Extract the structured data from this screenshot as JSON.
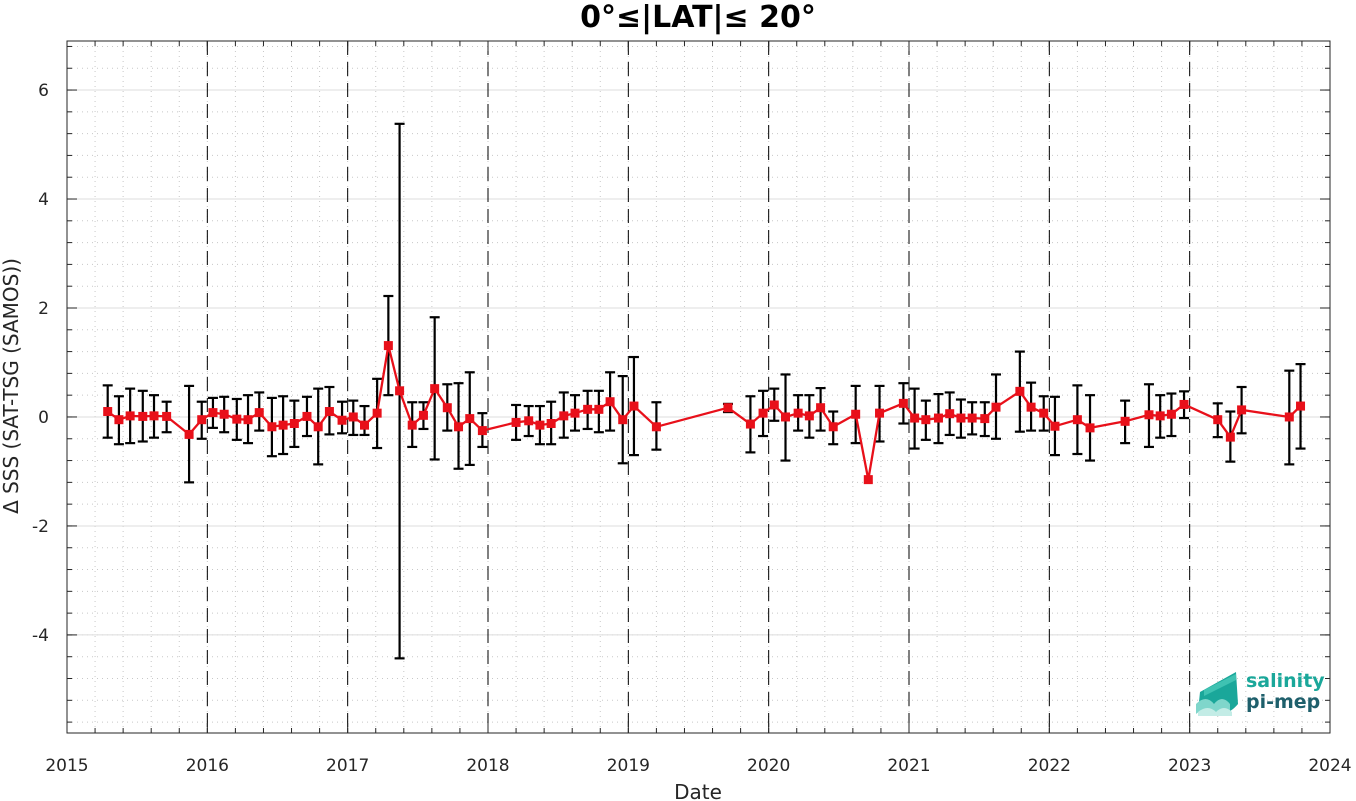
{
  "chart_data": {
    "type": "line",
    "title": "0°≤|LAT|≤ 20°",
    "xlabel": "Date",
    "ylabel": "Δ SSS (SAT-TSG (SAMOS))",
    "xlim": [
      2015.0,
      2024.0
    ],
    "ylim": [
      -5.8,
      6.9
    ],
    "x_ticks": [
      2015,
      2016,
      2017,
      2018,
      2019,
      2020,
      2021,
      2022,
      2023,
      2024
    ],
    "y_ticks": [
      -4,
      -2,
      0,
      2,
      4,
      6
    ],
    "grid": "dotted",
    "year_boundaries": [
      2016,
      2017,
      2018,
      2019,
      2020,
      2021,
      2022,
      2023
    ],
    "colors": {
      "series": "#e8101a",
      "errorbar": "#000000",
      "logo_accent": "#1aa79a"
    },
    "series": [
      {
        "x": [
          2015.29,
          2015.37,
          2015.45,
          2015.54,
          2015.62,
          2015.71,
          2015.87,
          2015.96,
          2016.04,
          2016.12,
          2016.21,
          2016.29,
          2016.37,
          2016.46,
          2016.54,
          2016.62,
          2016.71,
          2016.79,
          2016.87,
          2016.96,
          2017.04,
          2017.12,
          2017.21,
          2017.29,
          2017.37,
          2017.46,
          2017.54,
          2017.62,
          2017.71,
          2017.79,
          2017.87,
          2017.96,
          2018.2,
          2018.29,
          2018.37,
          2018.45,
          2018.54,
          2018.62,
          2018.71,
          2018.79,
          2018.87,
          2018.96,
          2019.04,
          2019.2,
          2019.71,
          2019.87,
          2019.96,
          2020.04,
          2020.12,
          2020.21,
          2020.29,
          2020.37,
          2020.46,
          2020.62,
          2020.71,
          2020.79,
          2020.96,
          2021.04,
          2021.12,
          2021.21,
          2021.29,
          2021.37,
          2021.45,
          2021.54,
          2021.62,
          2021.79,
          2021.87,
          2021.96,
          2022.04,
          2022.2,
          2022.29,
          2022.54,
          2022.71,
          2022.79,
          2022.87,
          2022.96,
          2023.2,
          2023.29,
          2023.37,
          2023.71,
          2023.79
        ],
        "y": [
          0.1,
          -0.05,
          0.02,
          0.01,
          0.02,
          0.01,
          -0.32,
          -0.05,
          0.08,
          0.05,
          -0.04,
          -0.05,
          0.08,
          -0.18,
          -0.15,
          -0.12,
          0.01,
          -0.18,
          0.1,
          -0.06,
          0.0,
          -0.15,
          0.07,
          1.31,
          0.48,
          -0.15,
          0.03,
          0.52,
          0.17,
          -0.18,
          -0.03,
          -0.25,
          -0.1,
          -0.07,
          -0.15,
          -0.12,
          0.02,
          0.07,
          0.14,
          0.14,
          0.28,
          -0.05,
          0.2,
          -0.18,
          0.17,
          -0.13,
          0.07,
          0.22,
          0.0,
          0.07,
          0.02,
          0.17,
          -0.18,
          0.05,
          -1.15,
          0.07,
          0.25,
          -0.02,
          -0.05,
          -0.02,
          0.06,
          -0.02,
          -0.02,
          -0.03,
          0.18,
          0.47,
          0.18,
          0.07,
          -0.17,
          -0.05,
          -0.2,
          -0.08,
          0.04,
          0.02,
          0.05,
          0.23,
          -0.05,
          -0.37,
          0.13,
          0.0,
          0.2
        ],
        "err_upper": [
          0.58,
          0.38,
          0.52,
          0.48,
          0.4,
          0.28,
          0.57,
          0.28,
          0.35,
          0.37,
          0.33,
          0.4,
          0.45,
          0.35,
          0.38,
          0.3,
          0.37,
          0.52,
          0.55,
          0.28,
          0.3,
          0.2,
          0.7,
          2.22,
          5.38,
          0.27,
          0.27,
          1.83,
          0.6,
          0.62,
          0.82,
          0.07,
          0.22,
          0.2,
          0.2,
          0.28,
          0.45,
          0.4,
          0.48,
          0.48,
          0.82,
          0.75,
          1.1,
          0.27,
          0.24,
          0.38,
          0.48,
          0.52,
          0.78,
          0.4,
          0.4,
          0.53,
          0.1,
          0.57,
          -1.15,
          0.57,
          0.62,
          0.52,
          0.3,
          0.42,
          0.45,
          0.32,
          0.27,
          0.27,
          0.78,
          1.2,
          0.63,
          0.38,
          0.37,
          0.58,
          0.4,
          0.3,
          0.6,
          0.4,
          0.43,
          0.47,
          0.25,
          0.1,
          0.55,
          0.85,
          0.97
        ],
        "err_lower": [
          -0.38,
          -0.5,
          -0.48,
          -0.45,
          -0.38,
          -0.28,
          -1.2,
          -0.4,
          -0.2,
          -0.28,
          -0.42,
          -0.48,
          -0.25,
          -0.72,
          -0.68,
          -0.55,
          -0.35,
          -0.87,
          -0.32,
          -0.3,
          -0.33,
          -0.33,
          -0.57,
          0.4,
          -4.43,
          -0.55,
          -0.22,
          -0.78,
          -0.25,
          -0.95,
          -0.88,
          -0.55,
          -0.42,
          -0.35,
          -0.5,
          -0.5,
          -0.38,
          -0.25,
          -0.22,
          -0.28,
          -0.25,
          -0.85,
          -0.7,
          -0.6,
          0.09,
          -0.65,
          -0.35,
          -0.07,
          -0.8,
          -0.25,
          -0.38,
          -0.25,
          -0.5,
          -0.48,
          -1.15,
          -0.45,
          -0.12,
          -0.58,
          -0.42,
          -0.48,
          -0.33,
          -0.38,
          -0.32,
          -0.35,
          -0.4,
          -0.27,
          -0.25,
          -0.25,
          -0.7,
          -0.68,
          -0.8,
          -0.48,
          -0.55,
          -0.38,
          -0.35,
          -0.02,
          -0.37,
          -0.82,
          -0.3,
          -0.87,
          -0.58
        ]
      }
    ]
  },
  "logo": {
    "line1": "salinity",
    "line2": "pi-mep"
  }
}
